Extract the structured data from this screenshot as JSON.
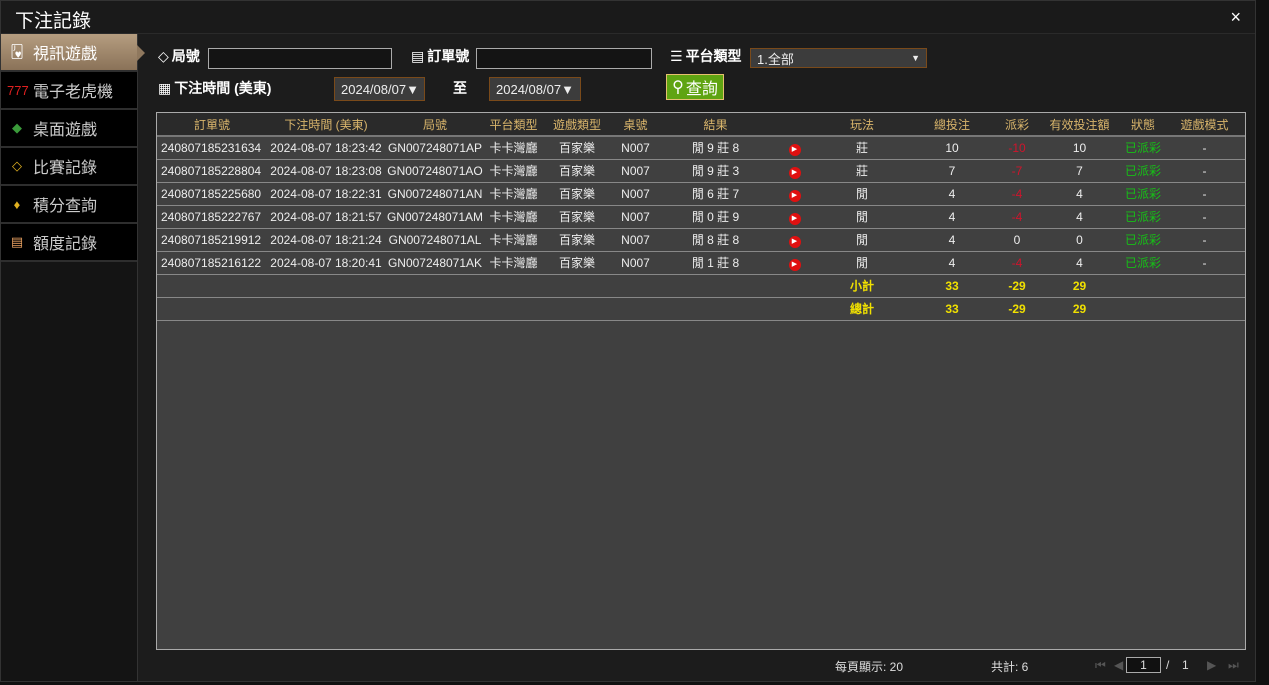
{
  "window": {
    "title": "下注記錄",
    "close": "×"
  },
  "sidebar": {
    "items": [
      {
        "label": "視訊遊戲",
        "icon": "cards-icon",
        "glyph": "🂻"
      },
      {
        "label": "電子老虎機",
        "icon": "777-slot-icon",
        "glyph": "777"
      },
      {
        "label": "桌面遊戲",
        "icon": "chips-icon",
        "glyph": "◆"
      },
      {
        "label": "比賽記錄",
        "icon": "ticket-icon",
        "glyph": "◇"
      },
      {
        "label": "積分查詢",
        "icon": "diamond-icon",
        "glyph": "♦"
      },
      {
        "label": "額度記錄",
        "icon": "document-icon",
        "glyph": "▤"
      }
    ]
  },
  "filters": {
    "round_label": "局號",
    "round_value": "",
    "order_label": "訂單號",
    "order_value": "",
    "platform_label": "平台類型",
    "platform_value": "1.全部",
    "time_label": "下注時間 (美東)",
    "date_from": "2024/08/07▼",
    "to_label": "至",
    "date_to": "2024/08/07▼",
    "search_label": "查詢"
  },
  "table": {
    "headers": [
      "訂單號",
      "下注時間 (美東)",
      "局號",
      "平台類型",
      "遊戲類型",
      "桌號",
      "結果",
      "",
      "玩法",
      "總投注",
      "派彩",
      "有效投注額",
      "狀態",
      "遊戲模式"
    ],
    "rows": [
      [
        "240807185231634",
        "2024-08-07 18:23:42",
        "GN007248071AP",
        "卡卡灣廳",
        "百家樂",
        "N007",
        "閒 9 莊 8",
        "▶",
        "莊",
        "10",
        "-10",
        "10",
        "已派彩",
        "-"
      ],
      [
        "240807185228804",
        "2024-08-07 18:23:08",
        "GN007248071AO",
        "卡卡灣廳",
        "百家樂",
        "N007",
        "閒 9 莊 3",
        "▶",
        "莊",
        "7",
        "-7",
        "7",
        "已派彩",
        "-"
      ],
      [
        "240807185225680",
        "2024-08-07 18:22:31",
        "GN007248071AN",
        "卡卡灣廳",
        "百家樂",
        "N007",
        "閒 6 莊 7",
        "▶",
        "閒",
        "4",
        "-4",
        "4",
        "已派彩",
        "-"
      ],
      [
        "240807185222767",
        "2024-08-07 18:21:57",
        "GN007248071AM",
        "卡卡灣廳",
        "百家樂",
        "N007",
        "閒 0 莊 9",
        "▶",
        "閒",
        "4",
        "-4",
        "4",
        "已派彩",
        "-"
      ],
      [
        "240807185219912",
        "2024-08-07 18:21:24",
        "GN007248071AL",
        "卡卡灣廳",
        "百家樂",
        "N007",
        "閒 8 莊 8",
        "▶",
        "閒",
        "4",
        "0",
        "0",
        "已派彩",
        "-"
      ],
      [
        "240807185216122",
        "2024-08-07 18:20:41",
        "GN007248071AK",
        "卡卡灣廳",
        "百家樂",
        "N007",
        "閒 1 莊 8",
        "▶",
        "閒",
        "4",
        "-4",
        "4",
        "已派彩",
        "-"
      ]
    ],
    "subtotal": {
      "label": "小計",
      "total_bet": "33",
      "payout": "-29",
      "valid_bet": "29"
    },
    "grandtotal": {
      "label": "總計",
      "total_bet": "33",
      "payout": "-29",
      "valid_bet": "29"
    }
  },
  "footer": {
    "per_page": "每頁顯示: 20",
    "total": "共計: 6",
    "page": "1",
    "page_sep": "/",
    "page_count": "1"
  },
  "colors": {
    "header_text": "#d9b56b",
    "negative": "#d0142c",
    "status_paid": "#16c016",
    "totals": "#f0e000",
    "search_button": "#5fa412"
  }
}
